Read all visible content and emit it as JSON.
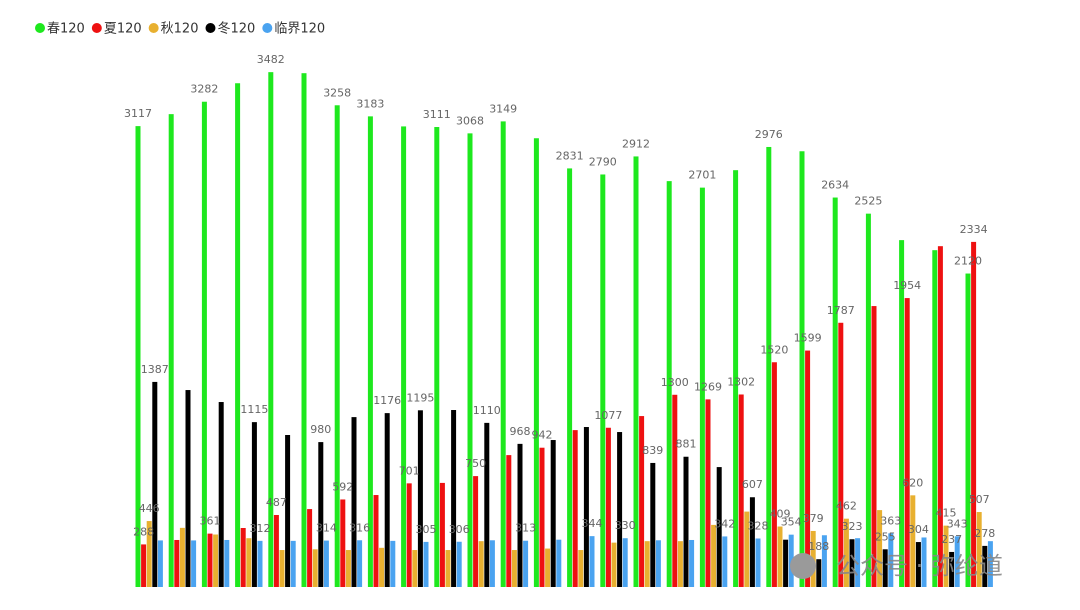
{
  "chart_data": {
    "type": "bar",
    "categories": [
      null,
      null,
      null,
      null,
      null,
      null,
      null,
      null,
      null,
      null,
      null,
      null,
      null,
      null,
      null,
      null,
      null,
      null,
      null,
      null,
      null,
      null,
      null,
      null,
      null,
      null
    ],
    "ylim": [
      0,
      3970
    ],
    "legend": "top-left",
    "series": [
      {
        "name": "春120",
        "color": "#1ee81e",
        "values": [
          3117,
          3198,
          3282,
          3407,
          3482,
          3475,
          3258,
          3183,
          3115,
          3111,
          3068,
          3149,
          3035,
          2831,
          2790,
          2912,
          2745,
          2701,
          2819,
          2976,
          2947,
          2634,
          2525,
          2346,
          2278,
          2120
        ],
        "value_labels": [
          "3117",
          null,
          "3282",
          null,
          "3482",
          null,
          "3258",
          "3183",
          null,
          "3111",
          "3068",
          "3149",
          null,
          "2831",
          "2790",
          "2912",
          null,
          "2701",
          null,
          "2976",
          null,
          "2634",
          "2525",
          null,
          null,
          "2120"
        ]
      },
      {
        "name": "夏120",
        "color": "#ee1111",
        "values": [
          288,
          318,
          361,
          399,
          487,
          527,
          592,
          622,
          701,
          704,
          750,
          892,
          942,
          1061,
          1077,
          1156,
          1300,
          1269,
          1302,
          1520,
          1599,
          1787,
          1900,
          1954,
          2305,
          2334
        ],
        "value_labels": [
          "288",
          null,
          "361",
          null,
          "487",
          null,
          "592",
          null,
          "701",
          null,
          "750",
          null,
          "942",
          null,
          "1077",
          null,
          "1300",
          "1269",
          "1302",
          "1520",
          "1599",
          "1787",
          null,
          "1954",
          null,
          "2334"
        ]
      },
      {
        "name": "秋120",
        "color": "#e8b030",
        "values": [
          446,
          400,
          355,
          330,
          250,
          255,
          250,
          265,
          250,
          250,
          310,
          250,
          260,
          250,
          300,
          310,
          310,
          420,
          510,
          409,
          379,
          462,
          520,
          620,
          415,
          507
        ],
        "value_labels": [
          "446",
          null,
          null,
          null,
          null,
          null,
          null,
          null,
          null,
          null,
          null,
          null,
          null,
          null,
          null,
          null,
          null,
          null,
          null,
          "409",
          "379",
          "462",
          null,
          "620",
          "415",
          "507"
        ]
      },
      {
        "name": "冬120",
        "color": "#000000",
        "values": [
          1387,
          1332,
          1251,
          1115,
          1028,
          980,
          1149,
          1176,
          1195,
          1197,
          1110,
          968,
          994,
          1082,
          1048,
          839,
          881,
          811,
          607,
          320,
          188,
          323,
          255,
          304,
          237,
          278
        ],
        "value_labels": [
          "1387",
          null,
          null,
          "1115",
          null,
          "980",
          null,
          "1176",
          "1195",
          null,
          "1110",
          "968",
          null,
          null,
          null,
          "839",
          "881",
          null,
          "607",
          null,
          "188",
          "323",
          "255",
          "304",
          "237",
          "278"
        ]
      },
      {
        "name": "临界120",
        "color": "#4aa3f0",
        "values": [
          315,
          315,
          318,
          312,
          312,
          314,
          316,
          312,
          305,
          306,
          316,
          313,
          320,
          344,
          330,
          316,
          318,
          342,
          328,
          354,
          350,
          330,
          363,
          335,
          343,
          310
        ],
        "value_labels": [
          null,
          null,
          null,
          "312",
          null,
          "314",
          "316",
          null,
          "305",
          "306",
          null,
          "313",
          null,
          "344",
          "330",
          null,
          null,
          "342",
          "328",
          "354",
          null,
          null,
          "363",
          null,
          "343",
          null
        ]
      }
    ],
    "watermark": "公众号 · 弥纶道"
  }
}
